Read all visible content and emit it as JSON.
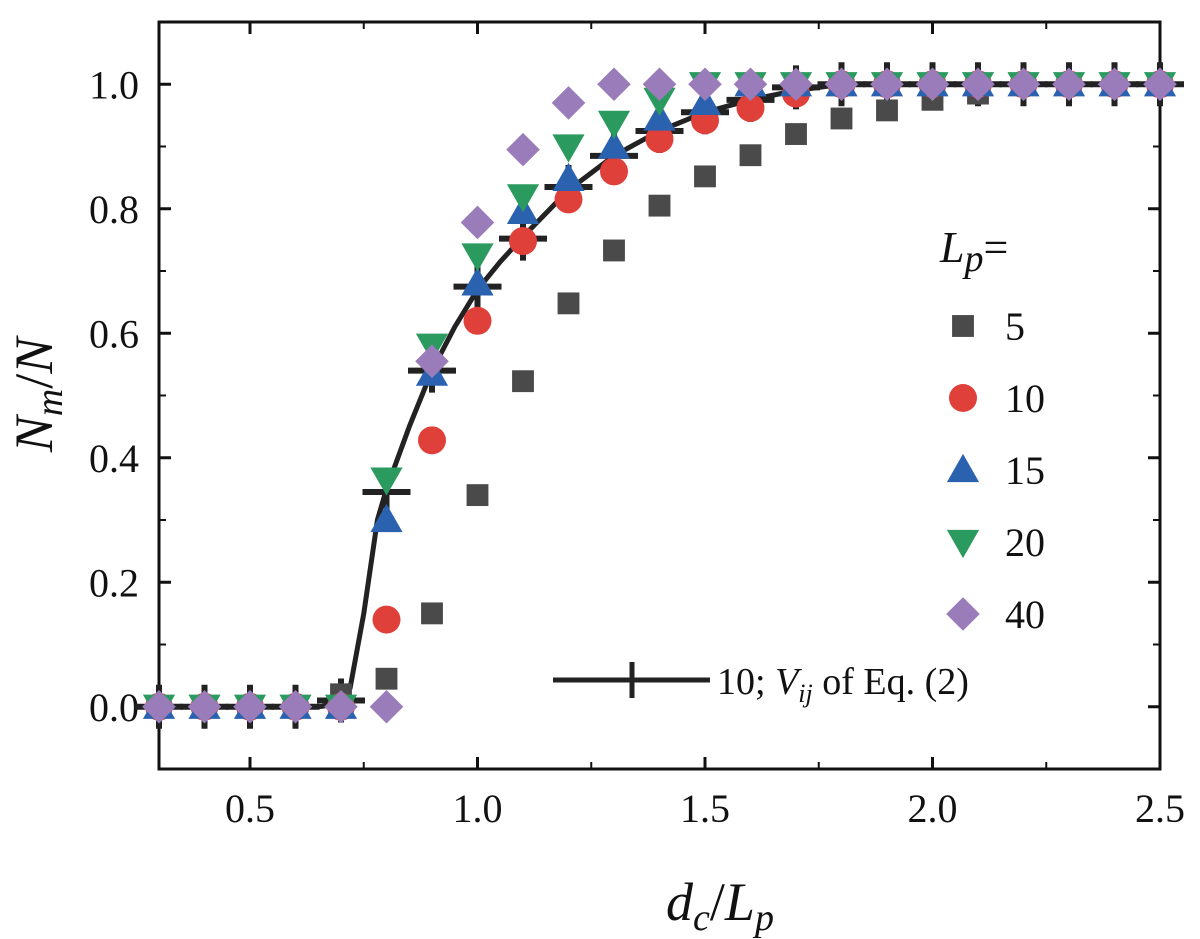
{
  "chart_data": {
    "type": "scatter",
    "xlim": [
      0.3,
      2.5
    ],
    "ylim": [
      -0.1,
      1.1
    ],
    "x_ticks": [
      "0.5",
      "1.0",
      "1.5",
      "2.0",
      "2.5"
    ],
    "y_ticks": [
      "0.0",
      "0.2",
      "0.4",
      "0.6",
      "0.8",
      "1.0"
    ],
    "xlabel": {
      "main": "d",
      "sub": "c",
      "sep": "/",
      "main2": "L",
      "sub2": "p"
    },
    "ylabel": {
      "main": "N",
      "sub": "m",
      "sep": "/",
      "main2": "N"
    },
    "legend": {
      "title_main": "L",
      "title_sub": "p",
      "title_suffix": "=",
      "placement": "right"
    },
    "series": [
      {
        "name": "5",
        "marker": "square",
        "color": "#4a4a4a",
        "points": [
          [
            0.3,
            0.0
          ],
          [
            0.4,
            0.0
          ],
          [
            0.5,
            0.0
          ],
          [
            0.6,
            0.0
          ],
          [
            0.7,
            0.02
          ],
          [
            0.8,
            0.045
          ],
          [
            0.9,
            0.15
          ],
          [
            1.0,
            0.34
          ],
          [
            1.1,
            0.523
          ],
          [
            1.2,
            0.648
          ],
          [
            1.3,
            0.733
          ],
          [
            1.4,
            0.805
          ],
          [
            1.5,
            0.852
          ],
          [
            1.6,
            0.886
          ],
          [
            1.7,
            0.92
          ],
          [
            1.8,
            0.945
          ],
          [
            1.9,
            0.958
          ],
          [
            2.0,
            0.975
          ],
          [
            2.1,
            0.985
          ],
          [
            2.2,
            1.0
          ],
          [
            2.3,
            1.0
          ],
          [
            2.4,
            1.0
          ],
          [
            2.5,
            1.0
          ]
        ]
      },
      {
        "name": "10",
        "marker": "circle",
        "color": "#e0403a",
        "points": [
          [
            0.3,
            0.0
          ],
          [
            0.4,
            0.0
          ],
          [
            0.5,
            0.0
          ],
          [
            0.6,
            0.0
          ],
          [
            0.7,
            0.0
          ],
          [
            0.8,
            0.14
          ],
          [
            0.9,
            0.428
          ],
          [
            1.0,
            0.62
          ],
          [
            1.1,
            0.748
          ],
          [
            1.2,
            0.815
          ],
          [
            1.3,
            0.86
          ],
          [
            1.4,
            0.912
          ],
          [
            1.5,
            0.942
          ],
          [
            1.6,
            0.962
          ],
          [
            1.7,
            0.985
          ],
          [
            1.8,
            1.0
          ],
          [
            1.9,
            1.0
          ],
          [
            2.0,
            1.0
          ],
          [
            2.1,
            1.0
          ],
          [
            2.2,
            1.0
          ],
          [
            2.3,
            1.0
          ],
          [
            2.4,
            1.0
          ],
          [
            2.5,
            1.0
          ]
        ]
      },
      {
        "name": "15",
        "marker": "triangle-up",
        "color": "#2a62b0",
        "points": [
          [
            0.3,
            0.0
          ],
          [
            0.4,
            0.0
          ],
          [
            0.5,
            0.0
          ],
          [
            0.6,
            0.0
          ],
          [
            0.7,
            0.0
          ],
          [
            0.8,
            0.3
          ],
          [
            0.9,
            0.535
          ],
          [
            1.0,
            0.68
          ],
          [
            1.1,
            0.795
          ],
          [
            1.2,
            0.848
          ],
          [
            1.3,
            0.9
          ],
          [
            1.4,
            0.945
          ],
          [
            1.5,
            0.97
          ],
          [
            1.6,
            1.0
          ],
          [
            1.7,
            1.0
          ],
          [
            1.8,
            1.0
          ],
          [
            1.9,
            1.0
          ],
          [
            2.0,
            1.0
          ],
          [
            2.1,
            1.0
          ],
          [
            2.2,
            1.0
          ],
          [
            2.3,
            1.0
          ],
          [
            2.4,
            1.0
          ],
          [
            2.5,
            1.0
          ]
        ]
      },
      {
        "name": "20",
        "marker": "triangle-down",
        "color": "#2a9a5e",
        "points": [
          [
            0.3,
            0.0
          ],
          [
            0.4,
            0.0
          ],
          [
            0.5,
            0.0
          ],
          [
            0.6,
            0.0
          ],
          [
            0.7,
            0.0
          ],
          [
            0.8,
            0.365
          ],
          [
            0.9,
            0.58
          ],
          [
            1.0,
            0.725
          ],
          [
            1.1,
            0.82
          ],
          [
            1.2,
            0.9
          ],
          [
            1.3,
            0.938
          ],
          [
            1.4,
            0.975
          ],
          [
            1.5,
            1.0
          ],
          [
            1.6,
            1.0
          ],
          [
            1.7,
            1.0
          ],
          [
            1.8,
            1.0
          ],
          [
            1.9,
            1.0
          ],
          [
            2.0,
            1.0
          ],
          [
            2.1,
            1.0
          ],
          [
            2.2,
            1.0
          ],
          [
            2.3,
            1.0
          ],
          [
            2.4,
            1.0
          ],
          [
            2.5,
            1.0
          ]
        ]
      },
      {
        "name": "40",
        "marker": "diamond",
        "color": "#9a7cba",
        "points": [
          [
            0.3,
            0.0
          ],
          [
            0.4,
            0.0
          ],
          [
            0.5,
            0.0
          ],
          [
            0.6,
            0.0
          ],
          [
            0.7,
            0.0
          ],
          [
            0.8,
            0.0
          ],
          [
            0.9,
            0.555
          ],
          [
            1.0,
            0.778
          ],
          [
            1.1,
            0.895
          ],
          [
            1.2,
            0.97
          ],
          [
            1.3,
            1.0
          ],
          [
            1.4,
            1.0
          ],
          [
            1.5,
            1.0
          ],
          [
            1.6,
            1.0
          ],
          [
            1.7,
            1.0
          ],
          [
            1.8,
            1.0
          ],
          [
            1.9,
            1.0
          ],
          [
            2.0,
            1.0
          ],
          [
            2.1,
            1.0
          ],
          [
            2.2,
            1.0
          ],
          [
            2.3,
            1.0
          ],
          [
            2.4,
            1.0
          ],
          [
            2.5,
            1.0
          ]
        ]
      }
    ],
    "fit_series": {
      "label_prefix": "10; ",
      "label_var": "V",
      "label_sub": "ij",
      "label_suffix": " of Eq. (2)",
      "color": "#222222",
      "points": [
        [
          0.3,
          0.0
        ],
        [
          0.4,
          0.0
        ],
        [
          0.5,
          0.0
        ],
        [
          0.6,
          0.0
        ],
        [
          0.7,
          0.01
        ],
        [
          0.8,
          0.345
        ],
        [
          0.9,
          0.54
        ],
        [
          1.0,
          0.675
        ],
        [
          1.1,
          0.752
        ],
        [
          1.2,
          0.835
        ],
        [
          1.3,
          0.885
        ],
        [
          1.4,
          0.925
        ],
        [
          1.5,
          0.955
        ],
        [
          1.6,
          0.975
        ],
        [
          1.7,
          0.995
        ],
        [
          1.8,
          1.0
        ],
        [
          1.9,
          1.0
        ],
        [
          2.0,
          1.0
        ],
        [
          2.1,
          1.0
        ],
        [
          2.2,
          1.0
        ],
        [
          2.3,
          1.0
        ],
        [
          2.4,
          1.0
        ],
        [
          2.5,
          1.0
        ]
      ],
      "curve": [
        [
          0.3,
          0.0
        ],
        [
          0.5,
          0.0
        ],
        [
          0.65,
          0.0
        ],
        [
          0.7,
          0.005
        ],
        [
          0.72,
          0.03
        ],
        [
          0.75,
          0.15
        ],
        [
          0.78,
          0.3
        ],
        [
          0.8,
          0.35
        ],
        [
          0.85,
          0.45
        ],
        [
          0.9,
          0.54
        ],
        [
          0.95,
          0.61
        ],
        [
          1.0,
          0.67
        ],
        [
          1.05,
          0.715
        ],
        [
          1.1,
          0.755
        ],
        [
          1.2,
          0.83
        ],
        [
          1.3,
          0.885
        ],
        [
          1.4,
          0.925
        ],
        [
          1.5,
          0.955
        ],
        [
          1.6,
          0.975
        ],
        [
          1.7,
          0.99
        ],
        [
          1.8,
          1.0
        ],
        [
          2.0,
          1.0
        ],
        [
          2.5,
          1.0
        ]
      ]
    }
  }
}
